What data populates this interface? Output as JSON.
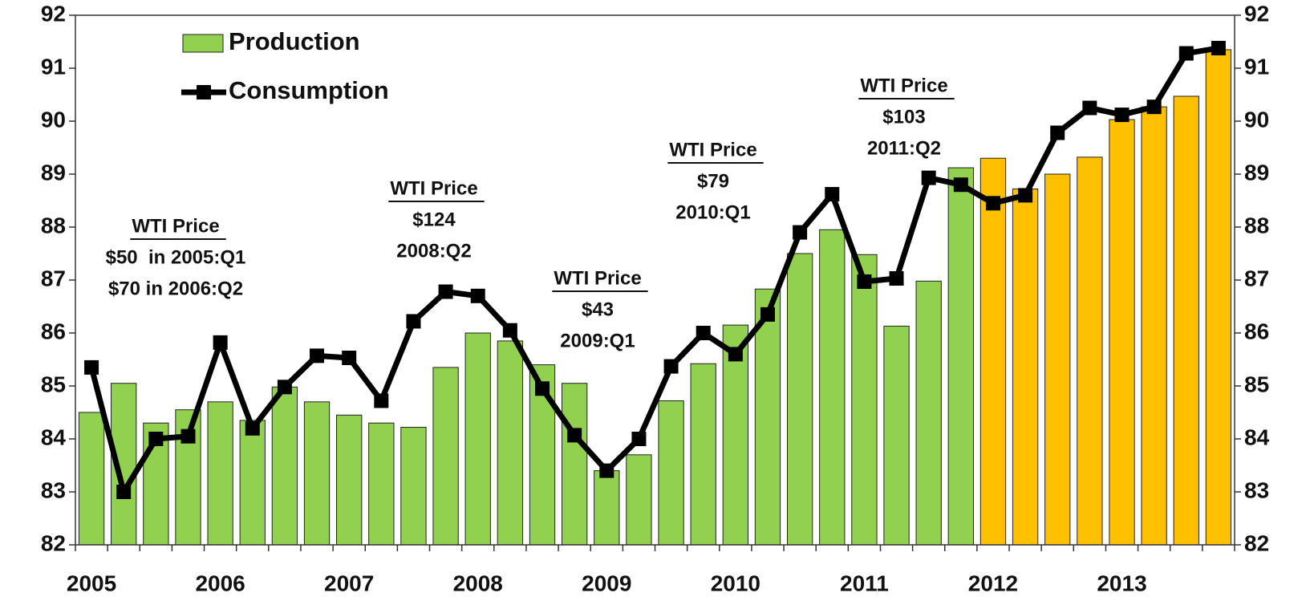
{
  "chart_data": {
    "type": "bar_line",
    "categories": [
      "2005",
      null,
      null,
      null,
      "2006",
      null,
      null,
      null,
      "2007",
      null,
      null,
      null,
      "2008",
      null,
      null,
      null,
      "2009",
      null,
      null,
      null,
      "2010",
      null,
      null,
      null,
      "2011",
      null,
      null,
      null,
      "2012",
      null,
      null,
      null,
      "2013",
      null,
      null,
      null
    ],
    "series": [
      {
        "name": "Production",
        "type": "bar",
        "color": "#92d050",
        "colors": [
          "#92d050",
          "#92d050",
          "#92d050",
          "#92d050",
          "#92d050",
          "#92d050",
          "#92d050",
          "#92d050",
          "#92d050",
          "#92d050",
          "#92d050",
          "#92d050",
          "#92d050",
          "#92d050",
          "#92d050",
          "#92d050",
          "#92d050",
          "#92d050",
          "#92d050",
          "#92d050",
          "#92d050",
          "#92d050",
          "#92d050",
          "#92d050",
          "#92d050",
          "#92d050",
          "#92d050",
          "#92d050",
          "#ffc000",
          "#ffc000",
          "#ffc000",
          "#ffc000",
          "#ffc000",
          "#ffc000",
          "#ffc000",
          "#ffc000"
        ],
        "values": [
          84.5,
          85.05,
          84.3,
          84.55,
          84.7,
          84.35,
          84.98,
          84.7,
          84.45,
          84.3,
          84.22,
          85.35,
          86.0,
          85.85,
          85.4,
          85.05,
          83.4,
          83.7,
          84.72,
          85.42,
          86.15,
          86.83,
          87.5,
          87.95,
          87.48,
          86.13,
          86.98,
          89.12,
          89.3,
          88.72,
          89.0,
          89.32,
          90.03,
          90.27,
          90.47,
          91.35
        ]
      },
      {
        "name": "Consumption",
        "type": "line",
        "color": "#000000",
        "values": [
          85.35,
          83.0,
          84.0,
          84.05,
          85.82,
          84.2,
          84.98,
          85.57,
          85.53,
          84.72,
          86.22,
          86.78,
          86.7,
          86.05,
          84.95,
          84.07,
          83.4,
          84.0,
          85.37,
          86.0,
          85.6,
          86.35,
          87.9,
          88.62,
          86.97,
          87.03,
          88.93,
          88.8,
          88.45,
          88.6,
          89.78,
          90.25,
          90.12,
          90.27,
          91.28,
          91.38
        ]
      }
    ],
    "ylim": [
      82,
      92
    ],
    "yticks": [
      82,
      83,
      84,
      85,
      86,
      87,
      88,
      89,
      90,
      91,
      92
    ],
    "y2lim": [
      82,
      92
    ],
    "y2ticks": [
      82,
      83,
      84,
      85,
      86,
      87,
      88,
      89,
      90,
      91,
      92
    ],
    "legend": "top-left",
    "annotations": [
      {
        "title": "WTI Price",
        "lines": [
          "$50  in 2005:Q1",
          "$70 in 2006:Q2"
        ]
      },
      {
        "title": "WTI Price",
        "lines": [
          "$124",
          "2008:Q2"
        ]
      },
      {
        "title": "WTI Price",
        "lines": [
          "$43",
          "2009:Q1"
        ]
      },
      {
        "title": "WTI Price",
        "lines": [
          "$79",
          "2010:Q1"
        ]
      },
      {
        "title": "WTI Price",
        "lines": [
          "$103",
          "2011:Q2"
        ]
      }
    ]
  }
}
